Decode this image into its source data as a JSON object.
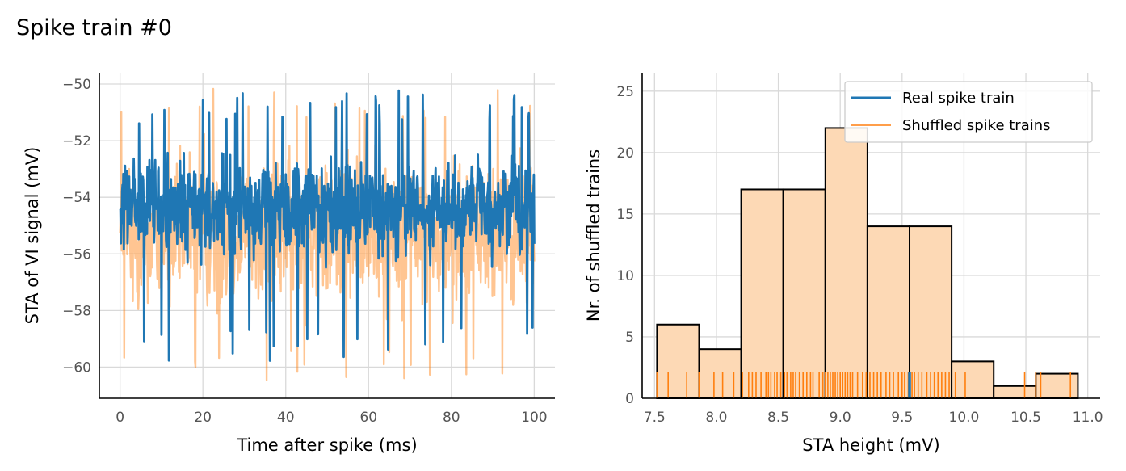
{
  "figure": {
    "title": "Spike train #0"
  },
  "colors": {
    "real": "#1f77b4",
    "shuffled": "#ff7f0e",
    "hist_fill": "#fdd9b5",
    "grid": "#d9d9d9",
    "tick_text": "#555555"
  },
  "chart_data": [
    {
      "type": "line",
      "xlabel": "Time after spike (ms)",
      "ylabel": "STA of VI signal (mV)",
      "xlim": [
        -5,
        105
      ],
      "ylim": [
        -61.1,
        -49.6
      ],
      "xticks": [
        0,
        20,
        40,
        60,
        80,
        100
      ],
      "yticks": [
        -50,
        -52,
        -54,
        -56,
        -58,
        -60
      ],
      "grid": true,
      "series": [
        {
          "role": "shuffled",
          "color": "#ff7f0e",
          "opacity": 0.45,
          "x_range": [
            0,
            100
          ],
          "band": [
            -58.5,
            -52.0
          ],
          "extremes": [
            -60.6,
            -50.1
          ],
          "note_values_estimated": true
        },
        {
          "role": "real",
          "color": "#1f77b4",
          "opacity": 1.0,
          "x_range": [
            0,
            100
          ],
          "band": [
            -56.5,
            -52.3
          ],
          "extremes": [
            -59.8,
            -50.2
          ],
          "note_values_estimated": true
        }
      ]
    },
    {
      "type": "bar",
      "xlabel": "STA height (mV)",
      "ylabel": "Nr. of shuffled trains",
      "xlim": [
        7.4,
        11.1
      ],
      "ylim": [
        0,
        26.5
      ],
      "xticks": [
        7.5,
        8.0,
        8.5,
        9.0,
        9.5,
        10.0,
        10.5,
        11.0
      ],
      "yticks": [
        0,
        5,
        10,
        15,
        20,
        25
      ],
      "grid": true,
      "legend_position": "top-right",
      "bins": [
        {
          "x0": 7.52,
          "x1": 7.86,
          "count": 6
        },
        {
          "x0": 7.86,
          "x1": 8.2,
          "count": 4
        },
        {
          "x0": 8.2,
          "x1": 8.54,
          "count": 17
        },
        {
          "x0": 8.54,
          "x1": 8.88,
          "count": 17
        },
        {
          "x0": 8.88,
          "x1": 9.22,
          "count": 22
        },
        {
          "x0": 9.22,
          "x1": 9.56,
          "count": 14
        },
        {
          "x0": 9.56,
          "x1": 9.9,
          "count": 14
        },
        {
          "x0": 9.9,
          "x1": 10.24,
          "count": 3
        },
        {
          "x0": 10.24,
          "x1": 10.58,
          "count": 1
        },
        {
          "x0": 10.58,
          "x1": 10.92,
          "count": 2
        }
      ],
      "rug": {
        "shuffled": [
          7.52,
          7.61,
          7.76,
          7.86,
          7.98,
          8.05,
          8.14,
          8.21,
          8.26,
          8.29,
          8.32,
          8.36,
          8.4,
          8.42,
          8.44,
          8.47,
          8.49,
          8.52,
          8.55,
          8.57,
          8.6,
          8.62,
          8.64,
          8.67,
          8.7,
          8.73,
          8.76,
          8.78,
          8.83,
          8.86,
          8.88,
          8.9,
          8.92,
          8.94,
          8.96,
          8.98,
          9.0,
          9.02,
          9.04,
          9.06,
          9.08,
          9.1,
          9.14,
          9.18,
          9.21,
          9.24,
          9.27,
          9.3,
          9.33,
          9.37,
          9.4,
          9.43,
          9.47,
          9.5,
          9.52,
          9.55,
          9.58,
          9.6,
          9.63,
          9.66,
          9.7,
          9.73,
          9.76,
          9.79,
          9.82,
          9.85,
          9.88,
          9.93,
          10.01,
          10.49,
          10.58,
          10.62,
          10.86
        ],
        "real": 9.56
      },
      "legend": [
        {
          "label": "Real spike train",
          "color": "#1f77b4",
          "width": 3
        },
        {
          "label": "Shuffled spike trains",
          "color": "#ff7f0e",
          "width": 1.5
        }
      ]
    }
  ]
}
